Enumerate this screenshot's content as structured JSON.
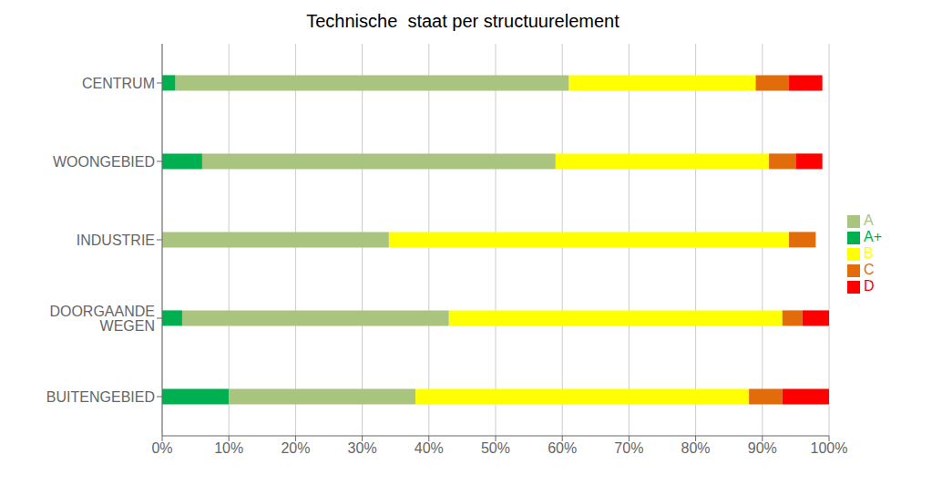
{
  "chart_data": {
    "type": "bar",
    "orientation": "horizontal",
    "stacked": true,
    "title": "Technische  staat per structuurelement",
    "categories": [
      "CENTRUM",
      "WOONGEBIED",
      "INDUSTRIE",
      "DOORGAANDE WEGEN",
      "BUITENGEBIED"
    ],
    "series": [
      {
        "name": "A+",
        "color": "#00b050",
        "values": [
          2,
          6,
          0,
          3,
          10
        ]
      },
      {
        "name": "A",
        "color": "#a9c47f",
        "values": [
          59,
          53,
          34,
          40,
          28
        ]
      },
      {
        "name": "B",
        "color": "#ffff00",
        "values": [
          28,
          32,
          60,
          50,
          50
        ]
      },
      {
        "name": "C",
        "color": "#e26b0a",
        "values": [
          5,
          4,
          4,
          3,
          5
        ]
      },
      {
        "name": "D",
        "color": "#ff0000",
        "values": [
          5,
          4,
          0,
          4,
          7
        ]
      }
    ],
    "xlim": [
      0,
      100
    ],
    "xticks": [
      {
        "value": 0,
        "label": "0%"
      },
      {
        "value": 10,
        "label": "10%"
      },
      {
        "value": 20,
        "label": "20%"
      },
      {
        "value": 30,
        "label": "30%"
      },
      {
        "value": 40,
        "label": "40%"
      },
      {
        "value": 50,
        "label": "50%"
      },
      {
        "value": 60,
        "label": "60%"
      },
      {
        "value": 70,
        "label": "70%"
      },
      {
        "value": 80,
        "label": "80%"
      },
      {
        "value": 90,
        "label": "90%"
      },
      {
        "value": 100,
        "label": "100%"
      }
    ],
    "grid": true,
    "legend": "right"
  }
}
